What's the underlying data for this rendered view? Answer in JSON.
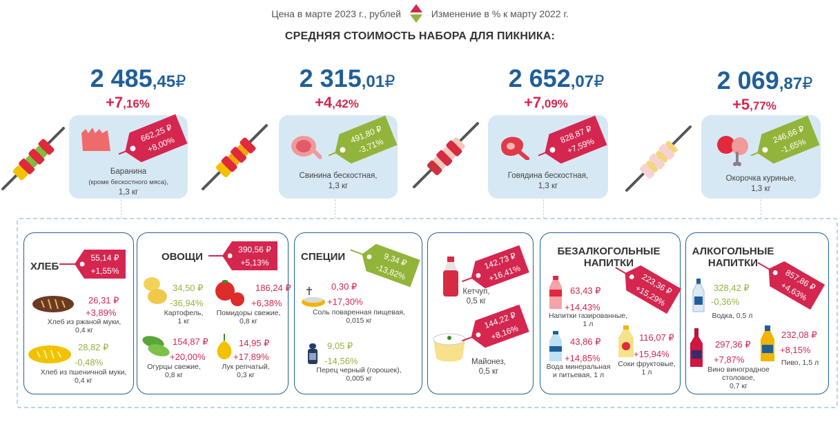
{
  "legend": {
    "price_label": "Цена в марте 2023 г., рублей",
    "change_label": "Изменение в % к марту 2022 г."
  },
  "title": "СРЕДНЯЯ СТОИМОСТЬ НАБОРА ДЛЯ ПИКНИКА:",
  "currency": "₽",
  "colors": {
    "up": "#d4264f",
    "down": "#93b43a",
    "accent": "#1f5f99",
    "panel": "#d7e8f5"
  },
  "sets": [
    {
      "total_int": "2 485",
      "total_dec": ",45",
      "change_int": "+7",
      "change_dec": ",16%",
      "meat": {
        "name": "Баранина",
        "note": "(кроме бескостного мяса),",
        "qty": "1,3 кг",
        "price": "662,25 ₽",
        "change": "+8,00%"
      }
    },
    {
      "total_int": "2 315",
      "total_dec": ",01",
      "change_int": "+4",
      "change_dec": ",42%",
      "meat": {
        "name": "Свинина бескостная,",
        "qty": "1,3 кг",
        "price": "491,80 ₽",
        "change": "-3,71%"
      }
    },
    {
      "total_int": "2 652",
      "total_dec": ",07",
      "change_int": "+7",
      "change_dec": ",09%",
      "meat": {
        "name": "Говядина бескостная,",
        "qty": "1,3 кг",
        "price": "828,87 ₽",
        "change": "+7,59%"
      }
    },
    {
      "total_int": "2 069",
      "total_dec": ",87",
      "change_int": "+5",
      "change_dec": ",77%",
      "meat": {
        "name": "Окорочка куриные,",
        "qty": "1,3 кг",
        "price": "246,66 ₽",
        "change": "-1,65%"
      }
    }
  ],
  "categories": {
    "bread": {
      "title": "ХЛЕБ",
      "price": "55,14 ₽",
      "change": "+1,55%",
      "items": [
        {
          "price": "26,31 ₽",
          "change": "+3,89%",
          "name": "Хлеб из ржаной муки,",
          "qty": "0,4 кг"
        },
        {
          "price": "28,82 ₽",
          "change": "-0,48%",
          "name": "Хлеб из пшеничной муки,",
          "qty": "0,4 кг"
        }
      ]
    },
    "vegetables": {
      "title": "ОВОЩИ",
      "price": "390,56 ₽",
      "change": "+5,13%",
      "items": [
        {
          "price": "34,50 ₽",
          "change": "-36,94%",
          "name": "Картофель,",
          "qty": "1 кг"
        },
        {
          "price": "186,24 ₽",
          "change": "+6,38%",
          "name": "Помидоры свежие,",
          "qty": "0,8 кг"
        },
        {
          "price": "154,87 ₽",
          "change": "+20,00%",
          "name": "Огурцы свежие,",
          "qty": "0,8 кг"
        },
        {
          "price": "14,95 ₽",
          "change": "+17,89%",
          "name": "Лук репчатый,",
          "qty": "0,3 кг"
        }
      ]
    },
    "spices": {
      "title": "СПЕЦИИ",
      "price": "9,34 ₽",
      "change": "-13,82%",
      "items": [
        {
          "price": "0,30 ₽",
          "change": "+17,30%",
          "name": "Соль поваренная пищевая,",
          "qty": "0,015 кг"
        },
        {
          "price": "9,05 ₽",
          "change": "-14,56%",
          "name": "Перец черный (горошек),",
          "qty": "0,005 кг"
        }
      ]
    },
    "sauces": {
      "items": [
        {
          "price": "142,73 ₽",
          "change": "+16,41%",
          "name": "Кетчуп,",
          "qty": "0,5 кг"
        },
        {
          "price": "144,22 ₽",
          "change": "+8,16%",
          "name": "Майонез,",
          "qty": "0,5 кг"
        }
      ]
    },
    "soft_drinks": {
      "title_line1": "БЕЗАЛКОГОЛЬНЫЕ",
      "title_line2": "НАПИТКИ",
      "price": "223,36 ₽",
      "change": "+15,29%",
      "items": [
        {
          "price": "63,43 ₽",
          "change": "+14,43%",
          "name": "Напитки газированные,",
          "qty": "1 л"
        },
        {
          "price": "43,86 ₽",
          "change": "+14,85%",
          "name": "Вода минеральная",
          "name2": "и питьевая, 1 л"
        },
        {
          "price": "116,07 ₽",
          "change": "+15,94%",
          "name": "Соки фруктовые,",
          "qty": "1 л"
        }
      ]
    },
    "alcohol": {
      "title_line1": "АЛКОГОЛЬНЫЕ",
      "title_line2": "НАПИТКИ",
      "price": "857,86 ₽",
      "change": "+4,63%",
      "items": [
        {
          "price": "328,42 ₽",
          "change": "-0,36%",
          "name": "Водка, 0,5 л"
        },
        {
          "price": "297,36 ₽",
          "change": "+7,87%",
          "name": "Вино виноградное",
          "name2": "столовое,",
          "qty": "0,7 кг"
        },
        {
          "price": "232,08 ₽",
          "change": "+8,15%",
          "name": "Пиво, 1,5 л"
        }
      ]
    }
  },
  "icons": [
    "skewer-icon",
    "lamb-icon",
    "pork-icon",
    "beef-icon",
    "chicken-leg-icon",
    "bread-icon",
    "potato-icon",
    "tomato-icon",
    "cucumber-icon",
    "onion-icon",
    "salt-icon",
    "pepper-icon",
    "ketchup-icon",
    "mayonnaise-icon",
    "soda-icon",
    "water-icon",
    "juice-icon",
    "vodka-icon",
    "wine-icon",
    "beer-icon"
  ]
}
